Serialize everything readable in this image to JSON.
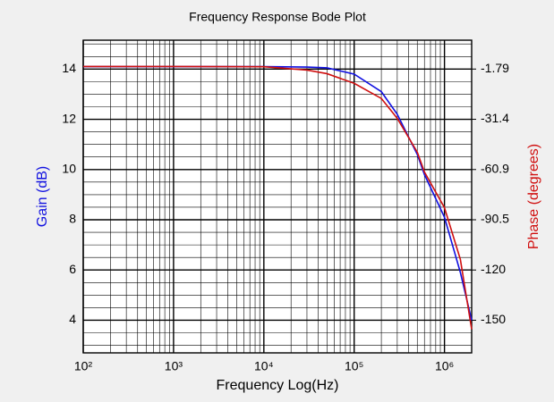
{
  "chart_data": {
    "type": "line",
    "title": "Frequency Response Bode Plot",
    "x_label": "Frequency Log(Hz)",
    "y_label": "Gain (dB)",
    "y2_label": "Phase (degrees)",
    "x_log": true,
    "grid": true,
    "xlim": [
      100,
      2000000
    ],
    "xticks": [
      {
        "value": 100,
        "label": "10²"
      },
      {
        "value": 1000,
        "label": "10³"
      },
      {
        "value": 10000,
        "label": "10⁴"
      },
      {
        "value": 100000,
        "label": "10⁵"
      },
      {
        "value": 1000000,
        "label": "10⁶"
      }
    ],
    "ylim": [
      2.7,
      15.15
    ],
    "yticks": [
      4,
      6,
      8,
      10,
      12,
      14
    ],
    "y2lim": [
      -168.9,
      15.2
    ],
    "y2ticks": [
      {
        "value": -149.69,
        "label": "-150"
      },
      {
        "value": -120.11,
        "label": "-120"
      },
      {
        "value": -90.53,
        "label": "-90.5"
      },
      {
        "value": -60.95,
        "label": "-60.9"
      },
      {
        "value": -31.37,
        "label": "-31.4"
      },
      -1.79
    ],
    "x": [
      100,
      1000,
      10000,
      30000,
      50000,
      100000,
      200000,
      300000,
      500000,
      600000,
      1000000,
      1500000,
      2000000
    ],
    "series": [
      {
        "name": "Gain",
        "color": "#1010e0",
        "values": [
          14.1,
          14.1,
          14.1,
          14.08,
          14.05,
          13.8,
          13.1,
          12.2,
          10.6,
          9.8,
          8.1,
          5.9,
          4.0
        ]
      },
      {
        "name": "Phase",
        "color": "#d01010",
        "axis": "y2",
        "values": [
          -0.3,
          -0.3,
          -0.4,
          -2.4,
          -4.5,
          -10.2,
          -19.1,
          -30.8,
          -50.7,
          -62.4,
          -83.4,
          -113.9,
          -155
        ]
      }
    ]
  }
}
